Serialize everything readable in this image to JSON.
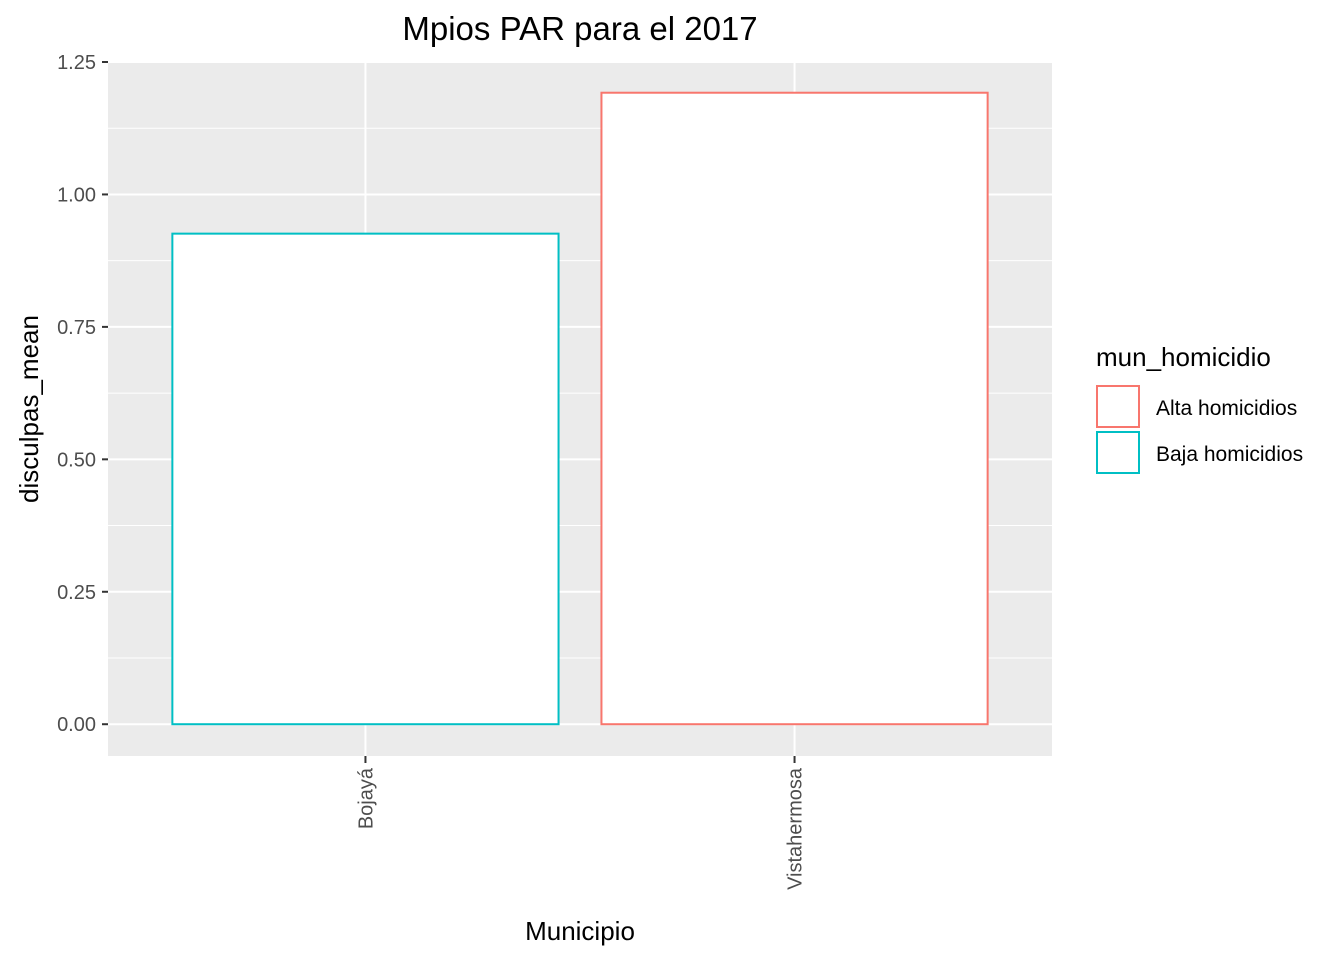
{
  "chart_data": {
    "type": "bar",
    "title": "Mpios PAR para el 2017",
    "xlabel": "Municipio",
    "ylabel": "disculpas_mean",
    "categories": [
      "Bojayá",
      "Vistahermosa"
    ],
    "values": [
      0.926,
      1.192
    ],
    "groups": [
      "Baja homicidios",
      "Alta homicidios"
    ],
    "ylim": [
      -0.06,
      1.25
    ],
    "yticks": [
      "0.00",
      "0.25",
      "0.50",
      "0.75",
      "1.00",
      "1.25"
    ],
    "ytick_values": [
      0,
      0.25,
      0.5,
      0.75,
      1.0,
      1.25
    ],
    "grid": true,
    "panel_color": "#EBEBEB",
    "bar_fill": "#FFFFFF",
    "legend": {
      "title": "mun_homicidio",
      "position": "right",
      "entries": [
        {
          "label": "Alta homicidios",
          "color": "#F8766D"
        },
        {
          "label": "Baja homicidios",
          "color": "#00BFC4"
        }
      ]
    }
  }
}
